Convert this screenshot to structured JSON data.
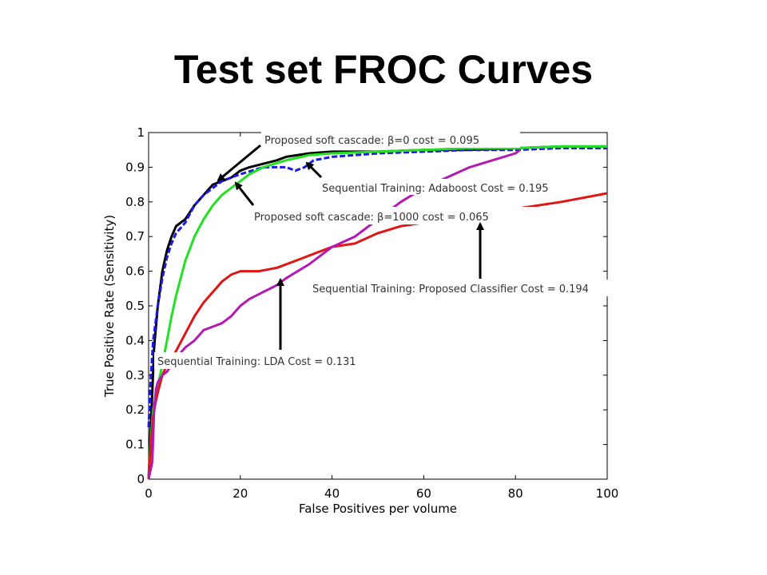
{
  "slide": {
    "title": "Test set FROC Curves"
  },
  "chart_data": {
    "type": "line",
    "title": "",
    "xlabel": "False Positives per volume",
    "ylabel": "True Positive Rate (Sensitivity)",
    "xlim": [
      0,
      100
    ],
    "ylim": [
      0,
      1
    ],
    "xticks": [
      0,
      20,
      40,
      60,
      80,
      100
    ],
    "yticks": [
      0,
      0.1,
      0.2,
      0.3,
      0.4,
      0.5,
      0.6,
      0.7,
      0.8,
      0.9,
      1
    ],
    "ytick_labels": [
      "0",
      "0.1",
      "0.2",
      "0.3",
      "0.4",
      "0.5",
      "0.6",
      "0.7",
      "0.8",
      "0.9",
      "1"
    ],
    "grid": false,
    "series": [
      {
        "name": "Proposed soft cascade: β=0 cost = 0.095",
        "color": "#000000",
        "dash": "solid",
        "x": [
          0,
          0.3,
          0.8,
          1.2,
          2,
          3,
          4,
          5,
          6,
          8,
          10,
          12,
          14,
          16,
          18,
          20,
          22,
          25,
          28,
          30,
          35,
          40,
          50,
          60,
          70,
          80,
          90,
          100
        ],
        "y": [
          0,
          0.1,
          0.25,
          0.38,
          0.5,
          0.6,
          0.66,
          0.7,
          0.73,
          0.75,
          0.79,
          0.82,
          0.85,
          0.86,
          0.87,
          0.89,
          0.9,
          0.91,
          0.92,
          0.93,
          0.94,
          0.945,
          0.945,
          0.95,
          0.95,
          0.955,
          0.96,
          0.96
        ]
      },
      {
        "name": "Sequential Training: Adaboost Cost = 0.195",
        "color": "#1a1ae6",
        "dash": "dashed",
        "x": [
          0,
          0.5,
          1,
          2,
          3,
          4,
          5,
          6,
          8,
          10,
          12,
          14,
          16,
          18,
          20,
          25,
          30,
          32,
          34,
          36,
          40,
          50,
          60,
          70,
          80,
          90,
          100
        ],
        "y": [
          0.15,
          0.3,
          0.4,
          0.5,
          0.58,
          0.64,
          0.68,
          0.71,
          0.74,
          0.79,
          0.82,
          0.84,
          0.86,
          0.87,
          0.88,
          0.9,
          0.9,
          0.89,
          0.9,
          0.92,
          0.93,
          0.94,
          0.945,
          0.95,
          0.95,
          0.955,
          0.955
        ]
      },
      {
        "name": "Proposed soft cascade: β=1000 cost = 0.065",
        "color": "#22e022",
        "dash": "solid",
        "x": [
          0,
          0.5,
          1,
          2,
          3,
          4,
          5,
          6,
          7,
          8,
          10,
          12,
          14,
          16,
          18,
          20,
          22,
          25,
          30,
          35,
          40,
          50,
          60,
          70,
          80,
          90,
          100
        ],
        "y": [
          0,
          0.12,
          0.2,
          0.27,
          0.33,
          0.4,
          0.47,
          0.53,
          0.58,
          0.63,
          0.7,
          0.75,
          0.79,
          0.82,
          0.84,
          0.86,
          0.88,
          0.9,
          0.92,
          0.935,
          0.94,
          0.945,
          0.95,
          0.955,
          0.955,
          0.96,
          0.96
        ]
      },
      {
        "name": "Sequential Training: Proposed Classifier Cost = 0.194",
        "color": "#e01515",
        "dash": "solid",
        "x": [
          0,
          0.5,
          1,
          1.5,
          2,
          3,
          4,
          6,
          8,
          10,
          12,
          14,
          16,
          18,
          20,
          24,
          28,
          32,
          36,
          40,
          45,
          50,
          55,
          60,
          65,
          70,
          80,
          90,
          100
        ],
        "y": [
          0,
          0.1,
          0.18,
          0.22,
          0.25,
          0.3,
          0.33,
          0.37,
          0.42,
          0.47,
          0.51,
          0.54,
          0.57,
          0.59,
          0.6,
          0.6,
          0.61,
          0.63,
          0.65,
          0.67,
          0.68,
          0.71,
          0.73,
          0.74,
          0.75,
          0.76,
          0.78,
          0.8,
          0.825
        ]
      },
      {
        "name": "Sequential Training: LDA Cost = 0.131",
        "color": "#b21ab2",
        "dash": "solid",
        "x": [
          0,
          0.8,
          1.2,
          1.6,
          2,
          3,
          4,
          6,
          8,
          10,
          12,
          14,
          16,
          18,
          20,
          22,
          25,
          28,
          30,
          35,
          40,
          45,
          50,
          55,
          60,
          65,
          70,
          75,
          80,
          81
        ],
        "y": [
          0,
          0.05,
          0.2,
          0.26,
          0.28,
          0.3,
          0.31,
          0.35,
          0.38,
          0.4,
          0.43,
          0.44,
          0.45,
          0.47,
          0.5,
          0.52,
          0.54,
          0.56,
          0.58,
          0.62,
          0.67,
          0.7,
          0.75,
          0.8,
          0.84,
          0.87,
          0.9,
          0.92,
          0.94,
          0.95
        ]
      }
    ],
    "annotations": [
      {
        "text": "Proposed soft cascade: β=0 cost = 0.095",
        "target_series": "Proposed soft cascade: β=0 cost = 0.095"
      },
      {
        "text": "Sequential Training: Adaboost Cost = 0.195",
        "target_series": "Sequential Training: Adaboost Cost = 0.195"
      },
      {
        "text": "Proposed soft cascade: β=1000 cost = 0.065",
        "target_series": "Proposed soft cascade: β=1000 cost = 0.065"
      },
      {
        "text": "Sequential Training: Proposed Classifier Cost = 0.194",
        "target_series": "Sequential Training: Proposed Classifier Cost = 0.194"
      },
      {
        "text": "Sequential Training: LDA Cost = 0.131",
        "target_series": "Sequential Training: LDA Cost = 0.131"
      }
    ]
  }
}
